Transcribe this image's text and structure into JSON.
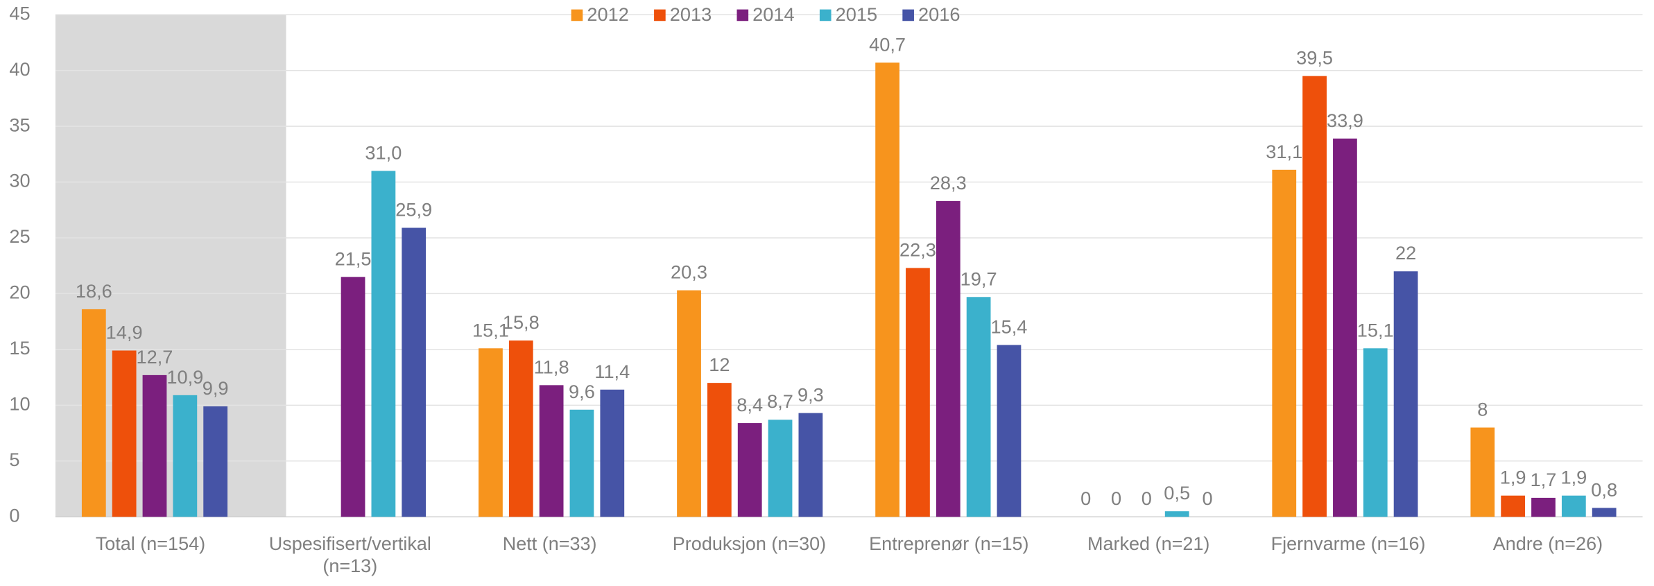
{
  "chart_data": {
    "type": "bar",
    "categories": [
      "Total (n=154)",
      "Uspesifisert/vertikal (n=13)",
      "Nett (n=33)",
      "Produksjon (n=30)",
      "Entreprenør (n=15)",
      "Marked (n=21)",
      "Fjernvarme (n=16)",
      "Andre (n=26)"
    ],
    "series": [
      {
        "name": "2012",
        "color": "#f7941d",
        "values": [
          18.6,
          null,
          15.1,
          20.3,
          40.7,
          0,
          31.1,
          8
        ],
        "value_labels": [
          "18,6",
          null,
          "15,1",
          "20,3",
          "40,7",
          "0",
          "31,1",
          "8"
        ]
      },
      {
        "name": "2013",
        "color": "#ee500b",
        "values": [
          14.9,
          null,
          15.8,
          12,
          22.3,
          0,
          39.5,
          1.9
        ],
        "value_labels": [
          "14,9",
          null,
          "15,8",
          "12",
          "22,3",
          "0",
          "39,5",
          "1,9"
        ]
      },
      {
        "name": "2014",
        "color": "#7b1f7e",
        "values": [
          12.7,
          21.5,
          11.8,
          8.4,
          28.3,
          0,
          33.9,
          1.7
        ],
        "value_labels": [
          "12,7",
          "21,5",
          "11,8",
          "8,4",
          "28,3",
          "0",
          "33,9",
          "1,7"
        ]
      },
      {
        "name": "2015",
        "color": "#3bb1cc",
        "values": [
          10.9,
          31.0,
          9.6,
          8.7,
          19.7,
          0.5,
          15.1,
          1.9
        ],
        "value_labels": [
          "10,9",
          "31,0",
          "9,6",
          "8,7",
          "19,7",
          "0,5",
          "15,1",
          "1,9"
        ]
      },
      {
        "name": "2016",
        "color": "#4654a6",
        "values": [
          9.9,
          25.9,
          11.4,
          9.3,
          15.4,
          0,
          22,
          0.8
        ],
        "value_labels": [
          "9,9",
          "25,9",
          "11,4",
          "9,3",
          "15,4",
          "0",
          "22",
          "0,8"
        ]
      }
    ],
    "ylim": [
      0,
      45
    ],
    "yticks": [
      0,
      5,
      10,
      15,
      20,
      25,
      30,
      35,
      40,
      45
    ],
    "grid": true,
    "legend": "top"
  }
}
